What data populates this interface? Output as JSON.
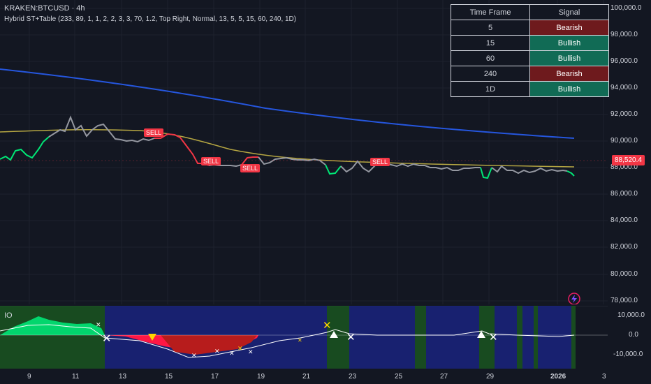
{
  "header": {
    "symbol_line": "KRAKEN:BTCUSD · 4h",
    "indicator_line": "Hybrid ST+Table (233, 89, 1, 1, 2, 2, 3, 3, 70, 1.2, Top Right, Normal, 13, 5, 5, 15, 60, 240, 1D)"
  },
  "signal_table": {
    "headers": [
      "Time Frame",
      "Signal"
    ],
    "rows": [
      {
        "tf": "5",
        "signal": "Bearish"
      },
      {
        "tf": "15",
        "signal": "Bullish"
      },
      {
        "tf": "60",
        "signal": "Bullish"
      },
      {
        "tf": "240",
        "signal": "Bearish"
      },
      {
        "tf": "1D",
        "signal": "Bullish"
      }
    ],
    "colors": {
      "Bearish": "#6e1a1d",
      "Bullish": "#116b55"
    }
  },
  "price_axis": [
    "100,000.0",
    "98,000.0",
    "96,000.0",
    "94,000.0",
    "92,000.0",
    "90,000.0",
    "88,000.0",
    "86,000.0",
    "84,000.0",
    "82,000.0",
    "80,000.0",
    "78,000.0"
  ],
  "current_price": "88,520.4",
  "time_axis": [
    "9",
    "11",
    "13",
    "15",
    "17",
    "19",
    "21",
    "23",
    "25",
    "27",
    "29",
    "2026",
    "3"
  ],
  "sell_label": "SELL",
  "oscillator": {
    "label": "IO",
    "axis": [
      "10,000.0",
      "0.0",
      "-10,000.0"
    ]
  },
  "colors": {
    "background": "#131722",
    "ema_long": "#2962ff",
    "ema_mid": "#b5a642",
    "price_neutral": "#9598a1",
    "bull": "#00e676",
    "bear": "#f23645",
    "osc_bull_bg": "#1b5e20",
    "osc_bear_bg": "#1a237e"
  }
}
